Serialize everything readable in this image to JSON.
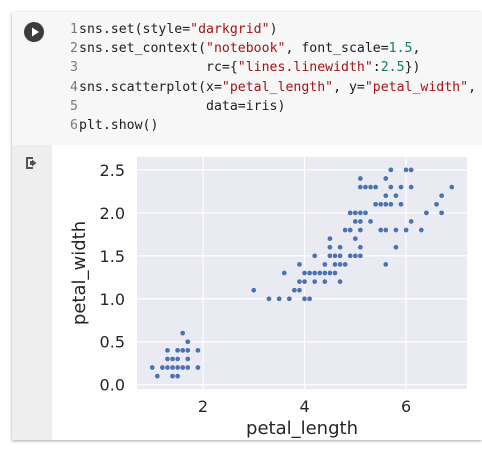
{
  "code": {
    "lines": [
      {
        "n": "1",
        "tokens": [
          {
            "t": "sns.set(style="
          },
          {
            "t": "\"darkgrid\"",
            "c": "str"
          },
          {
            "t": ")"
          }
        ]
      },
      {
        "n": "2",
        "tokens": [
          {
            "t": "sns.set_context("
          },
          {
            "t": "\"notebook\"",
            "c": "str"
          },
          {
            "t": ", font_scale="
          },
          {
            "t": "1.5",
            "c": "num"
          },
          {
            "t": ","
          }
        ]
      },
      {
        "n": "3",
        "tokens": [
          {
            "t": "                rc={"
          },
          {
            "t": "\"lines.linewidth\"",
            "c": "str"
          },
          {
            "t": ":"
          },
          {
            "t": "2.5",
            "c": "num"
          },
          {
            "t": "})"
          }
        ]
      },
      {
        "n": "4",
        "tokens": [
          {
            "t": "sns.scatterplot(x="
          },
          {
            "t": "\"petal_length\"",
            "c": "str"
          },
          {
            "t": ", y="
          },
          {
            "t": "\"petal_width\"",
            "c": "str"
          },
          {
            "t": ","
          }
        ]
      },
      {
        "n": "5",
        "tokens": [
          {
            "t": "                data=iris)"
          }
        ]
      },
      {
        "n": "6",
        "tokens": [
          {
            "t": "plt.show()"
          }
        ]
      }
    ]
  },
  "icons": {
    "run": "play-icon",
    "output": "output-arrow-icon"
  },
  "colors": {
    "plot_bg": "#eaeaf2",
    "grid": "#ffffff",
    "point": "#4c72b0"
  },
  "chart_data": {
    "type": "scatter",
    "xlabel": "petal_length",
    "ylabel": "petal_width",
    "xlim": [
      0.7,
      7.2
    ],
    "ylim": [
      -0.05,
      2.65
    ],
    "xticks": [
      2,
      4,
      6
    ],
    "yticks": [
      0.0,
      0.5,
      1.0,
      1.5,
      2.0,
      2.5
    ],
    "xtick_labels": [
      "2",
      "4",
      "6"
    ],
    "ytick_labels": [
      "0.0",
      "0.5",
      "1.0",
      "1.5",
      "2.0",
      "2.5"
    ],
    "grid": true,
    "points": [
      [
        1.4,
        0.2
      ],
      [
        1.4,
        0.2
      ],
      [
        1.3,
        0.2
      ],
      [
        1.5,
        0.2
      ],
      [
        1.4,
        0.2
      ],
      [
        1.7,
        0.4
      ],
      [
        1.4,
        0.3
      ],
      [
        1.5,
        0.2
      ],
      [
        1.4,
        0.2
      ],
      [
        1.5,
        0.1
      ],
      [
        1.5,
        0.2
      ],
      [
        1.6,
        0.2
      ],
      [
        1.4,
        0.1
      ],
      [
        1.1,
        0.1
      ],
      [
        1.2,
        0.2
      ],
      [
        1.5,
        0.4
      ],
      [
        1.3,
        0.4
      ],
      [
        1.4,
        0.3
      ],
      [
        1.7,
        0.3
      ],
      [
        1.5,
        0.3
      ],
      [
        1.7,
        0.2
      ],
      [
        1.5,
        0.4
      ],
      [
        1.0,
        0.2
      ],
      [
        1.7,
        0.5
      ],
      [
        1.9,
        0.2
      ],
      [
        1.6,
        0.2
      ],
      [
        1.6,
        0.4
      ],
      [
        1.5,
        0.2
      ],
      [
        1.4,
        0.2
      ],
      [
        1.6,
        0.2
      ],
      [
        1.6,
        0.2
      ],
      [
        1.5,
        0.4
      ],
      [
        1.5,
        0.1
      ],
      [
        1.4,
        0.2
      ],
      [
        1.5,
        0.2
      ],
      [
        1.2,
        0.2
      ],
      [
        1.3,
        0.2
      ],
      [
        1.4,
        0.1
      ],
      [
        1.3,
        0.2
      ],
      [
        1.5,
        0.2
      ],
      [
        1.3,
        0.3
      ],
      [
        1.3,
        0.3
      ],
      [
        1.3,
        0.2
      ],
      [
        1.6,
        0.6
      ],
      [
        1.9,
        0.4
      ],
      [
        1.4,
        0.3
      ],
      [
        1.6,
        0.2
      ],
      [
        1.4,
        0.2
      ],
      [
        1.5,
        0.2
      ],
      [
        1.4,
        0.2
      ],
      [
        4.7,
        1.4
      ],
      [
        4.5,
        1.5
      ],
      [
        4.9,
        1.5
      ],
      [
        4.0,
        1.3
      ],
      [
        4.6,
        1.5
      ],
      [
        4.5,
        1.3
      ],
      [
        4.7,
        1.6
      ],
      [
        3.3,
        1.0
      ],
      [
        4.6,
        1.3
      ],
      [
        3.9,
        1.4
      ],
      [
        3.5,
        1.0
      ],
      [
        4.2,
        1.5
      ],
      [
        4.0,
        1.0
      ],
      [
        4.7,
        1.4
      ],
      [
        3.6,
        1.3
      ],
      [
        4.4,
        1.4
      ],
      [
        4.5,
        1.5
      ],
      [
        4.1,
        1.0
      ],
      [
        4.5,
        1.5
      ],
      [
        3.9,
        1.1
      ],
      [
        4.8,
        1.8
      ],
      [
        4.0,
        1.3
      ],
      [
        4.9,
        1.5
      ],
      [
        4.7,
        1.2
      ],
      [
        4.3,
        1.3
      ],
      [
        4.4,
        1.4
      ],
      [
        4.8,
        1.4
      ],
      [
        5.0,
        1.7
      ],
      [
        4.5,
        1.5
      ],
      [
        3.5,
        1.0
      ],
      [
        3.8,
        1.1
      ],
      [
        3.7,
        1.0
      ],
      [
        3.9,
        1.2
      ],
      [
        5.1,
        1.6
      ],
      [
        4.5,
        1.5
      ],
      [
        4.5,
        1.6
      ],
      [
        4.7,
        1.5
      ],
      [
        4.4,
        1.3
      ],
      [
        4.1,
        1.3
      ],
      [
        4.0,
        1.3
      ],
      [
        4.4,
        1.2
      ],
      [
        4.6,
        1.4
      ],
      [
        4.0,
        1.2
      ],
      [
        3.3,
        1.0
      ],
      [
        4.2,
        1.3
      ],
      [
        4.2,
        1.2
      ],
      [
        4.2,
        1.3
      ],
      [
        4.3,
        1.3
      ],
      [
        3.0,
        1.1
      ],
      [
        4.1,
        1.3
      ],
      [
        6.0,
        2.5
      ],
      [
        5.1,
        1.9
      ],
      [
        5.9,
        2.1
      ],
      [
        5.6,
        1.8
      ],
      [
        5.8,
        2.2
      ],
      [
        6.6,
        2.1
      ],
      [
        4.5,
        1.7
      ],
      [
        6.3,
        1.8
      ],
      [
        5.8,
        1.8
      ],
      [
        6.1,
        2.5
      ],
      [
        5.1,
        2.0
      ],
      [
        5.3,
        1.9
      ],
      [
        5.5,
        2.1
      ],
      [
        5.0,
        2.0
      ],
      [
        5.1,
        2.4
      ],
      [
        5.3,
        2.3
      ],
      [
        5.5,
        1.8
      ],
      [
        6.7,
        2.2
      ],
      [
        6.9,
        2.3
      ],
      [
        5.0,
        1.5
      ],
      [
        5.7,
        2.3
      ],
      [
        4.9,
        2.0
      ],
      [
        6.7,
        2.0
      ],
      [
        4.9,
        1.8
      ],
      [
        5.7,
        2.1
      ],
      [
        6.0,
        1.8
      ],
      [
        4.8,
        1.8
      ],
      [
        4.9,
        1.8
      ],
      [
        5.6,
        2.1
      ],
      [
        5.8,
        1.6
      ],
      [
        6.1,
        1.9
      ],
      [
        6.4,
        2.0
      ],
      [
        5.6,
        2.2
      ],
      [
        5.1,
        1.5
      ],
      [
        5.6,
        1.4
      ],
      [
        6.1,
        2.3
      ],
      [
        5.6,
        2.4
      ],
      [
        5.5,
        1.8
      ],
      [
        4.8,
        1.8
      ],
      [
        5.4,
        2.1
      ],
      [
        5.6,
        2.4
      ],
      [
        5.1,
        2.3
      ],
      [
        5.1,
        1.9
      ],
      [
        5.9,
        2.3
      ],
      [
        5.7,
        2.5
      ],
      [
        5.2,
        2.3
      ],
      [
        5.0,
        1.9
      ],
      [
        5.2,
        2.0
      ],
      [
        5.4,
        2.3
      ],
      [
        5.1,
        1.8
      ]
    ]
  }
}
